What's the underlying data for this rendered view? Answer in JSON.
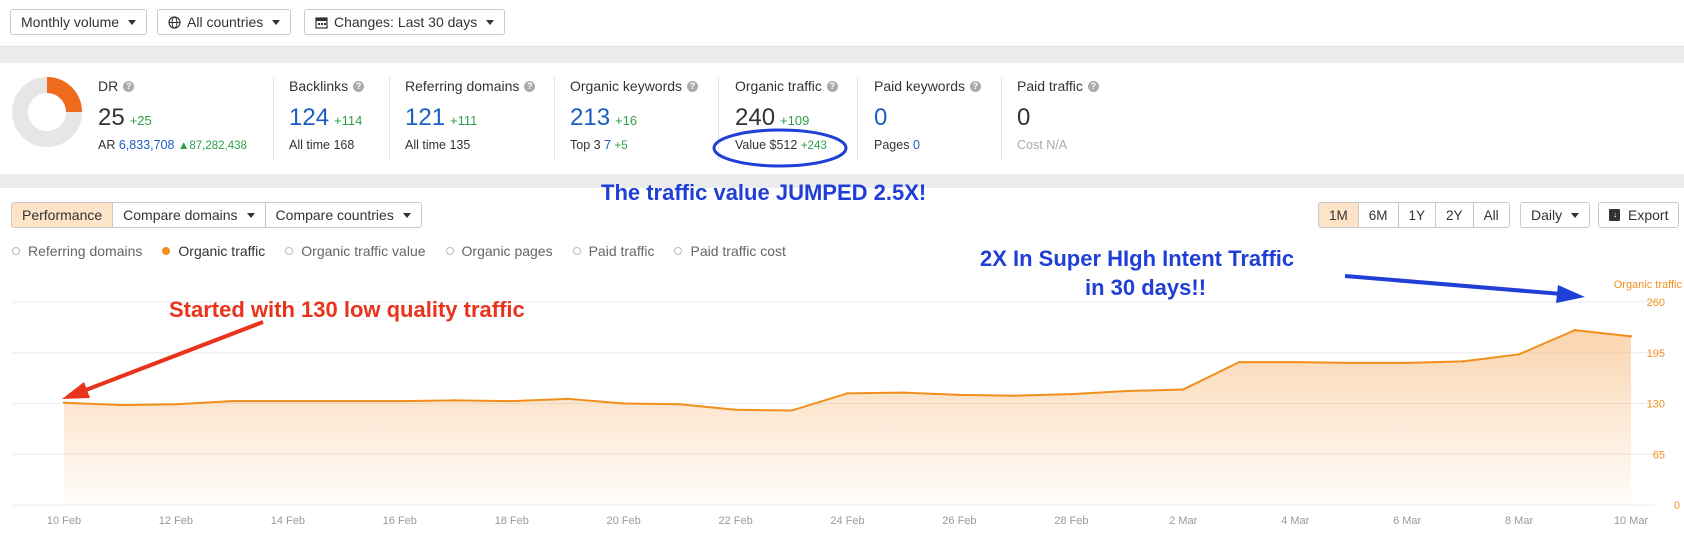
{
  "filters": {
    "volume": "Monthly volume",
    "country": "All countries",
    "changes": "Changes: Last 30 days"
  },
  "metrics": {
    "dr": {
      "label": "DR",
      "value": "25",
      "delta": "+25",
      "ar_label": "AR",
      "ar_value": "6,833,708",
      "ar_delta": "87,282,438",
      "ring_fraction": 0.25
    },
    "backlinks": {
      "label": "Backlinks",
      "value": "124",
      "delta": "+114",
      "sub_label": "All time",
      "sub_value": "168"
    },
    "referring_domains": {
      "label": "Referring domains",
      "value": "121",
      "delta": "+111",
      "sub_label": "All time",
      "sub_value": "135"
    },
    "organic_keywords": {
      "label": "Organic keywords",
      "value": "213",
      "delta": "+16",
      "sub_label": "Top 3",
      "sub_value": "7",
      "sub_delta": "+5"
    },
    "organic_traffic": {
      "label": "Organic traffic",
      "value": "240",
      "delta": "+109",
      "sub_label": "Value",
      "sub_value": "$512",
      "sub_delta": "+243"
    },
    "paid_keywords": {
      "label": "Paid keywords",
      "value": "0",
      "sub_label": "Pages",
      "sub_value": "0"
    },
    "paid_traffic": {
      "label": "Paid traffic",
      "value": "0",
      "sub_label": "Cost",
      "sub_value": "N/A"
    }
  },
  "tabs": [
    {
      "label": "Performance",
      "active": true
    },
    {
      "label": "Compare domains",
      "active": false
    },
    {
      "label": "Compare countries",
      "active": false
    }
  ],
  "ranges": [
    {
      "label": "1M",
      "active": true
    },
    {
      "label": "6M",
      "active": false
    },
    {
      "label": "1Y",
      "active": false
    },
    {
      "label": "2Y",
      "active": false
    },
    {
      "label": "All",
      "active": false
    }
  ],
  "granularity": "Daily",
  "export_label": "Export",
  "legend": [
    {
      "label": "Referring domains",
      "active": false
    },
    {
      "label": "Organic traffic",
      "active": true
    },
    {
      "label": "Organic traffic value",
      "active": false
    },
    {
      "label": "Organic pages",
      "active": false
    },
    {
      "label": "Paid traffic",
      "active": false
    },
    {
      "label": "Paid traffic cost",
      "active": false
    }
  ],
  "annotations": {
    "value_jump": "The traffic value JUMPED 2.5X!",
    "start": "Started with 130 low quality traffic",
    "growth_line1": "2X In Super HIgh Intent Traffic",
    "growth_line2": "in 30 days!!"
  },
  "colors": {
    "accent": "#f08f1c",
    "annotation_red": "#e8341c",
    "annotation_blue": "#1f3fd6",
    "link_blue": "#1c5ec0",
    "positive_green": "#2e9e4a"
  },
  "chart_data": {
    "type": "area",
    "ylabel": "Organic traffic",
    "y_ticks": [
      0,
      65,
      130,
      195,
      260
    ],
    "ylim": [
      0,
      260
    ],
    "x_ticks": [
      "10 Feb",
      "12 Feb",
      "14 Feb",
      "16 Feb",
      "18 Feb",
      "20 Feb",
      "22 Feb",
      "24 Feb",
      "26 Feb",
      "28 Feb",
      "2 Mar",
      "4 Mar",
      "6 Mar",
      "8 Mar",
      "10 Mar"
    ],
    "x": [
      "10 Feb",
      "11 Feb",
      "12 Feb",
      "13 Feb",
      "14 Feb",
      "15 Feb",
      "16 Feb",
      "17 Feb",
      "18 Feb",
      "19 Feb",
      "20 Feb",
      "21 Feb",
      "22 Feb",
      "23 Feb",
      "24 Feb",
      "25 Feb",
      "26 Feb",
      "27 Feb",
      "28 Feb",
      "1 Mar",
      "2 Mar",
      "3 Mar",
      "4 Mar",
      "5 Mar",
      "6 Mar",
      "7 Mar",
      "8 Mar",
      "9 Mar",
      "10 Mar"
    ],
    "series": [
      {
        "name": "Organic traffic",
        "values": [
          131,
          128,
          129,
          133,
          133,
          133,
          133,
          134,
          133,
          136,
          130,
          129,
          122,
          121,
          143,
          144,
          141,
          140,
          142,
          146,
          148,
          183,
          183,
          182,
          182,
          184,
          193,
          224,
          216
        ]
      }
    ],
    "grid": true,
    "legend": "top-left"
  }
}
